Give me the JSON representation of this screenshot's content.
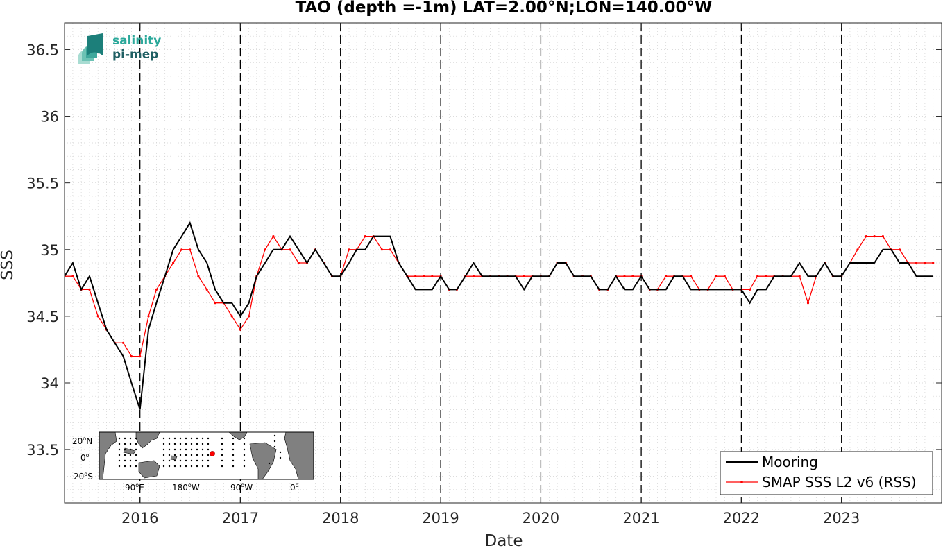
{
  "chart_data": {
    "type": "line",
    "title": "TAO (depth =-1m) LAT=2.00°N;LON=140.00°W",
    "xlabel": "Date",
    "ylabel": "SSS",
    "xlim": [
      "2015-04-01",
      "2024-01-01"
    ],
    "ylim": [
      33.1,
      36.7
    ],
    "x_ticks": [
      "2016",
      "2017",
      "2018",
      "2019",
      "2020",
      "2021",
      "2022",
      "2023"
    ],
    "y_ticks": [
      "33.5",
      "34",
      "34.5",
      "35",
      "35.5",
      "36",
      "36.5"
    ],
    "y_tick_values": [
      33.5,
      34,
      34.5,
      35,
      35.5,
      36,
      36.5
    ],
    "grid": "minor dotted",
    "year_boundaries": [
      "2016-01-01",
      "2017-01-01",
      "2018-01-01",
      "2019-01-01",
      "2020-01-01",
      "2021-01-01",
      "2022-01-01",
      "2023-01-01"
    ],
    "legend_position": "bottom-right",
    "series": [
      {
        "name": "Mooring",
        "color": "#000000",
        "x": [
          "2015-04-01",
          "2015-05-01",
          "2015-06-01",
          "2015-07-01",
          "2015-08-01",
          "2015-09-01",
          "2015-10-01",
          "2015-11-01",
          "2015-12-01",
          "2016-01-01",
          "2016-02-01",
          "2016-03-01",
          "2016-04-01",
          "2016-05-01",
          "2016-06-01",
          "2016-07-01",
          "2016-08-01",
          "2016-09-01",
          "2016-10-01",
          "2016-11-01",
          "2016-12-01",
          "2017-01-01",
          "2017-02-01",
          "2017-03-01",
          "2017-04-01",
          "2017-05-01",
          "2017-06-01",
          "2017-07-01",
          "2017-08-01",
          "2017-09-01",
          "2017-10-01",
          "2017-11-01",
          "2017-12-01",
          "2018-01-01",
          "2018-02-01",
          "2018-03-01",
          "2018-04-01",
          "2018-05-01",
          "2018-06-01",
          "2018-07-01",
          "2018-08-01",
          "2018-09-01",
          "2018-10-01",
          "2018-11-01",
          "2018-12-01",
          "2019-01-01",
          "2019-02-01",
          "2019-03-01",
          "2019-04-01",
          "2019-05-01",
          "2019-06-01",
          "2019-07-01",
          "2019-08-01",
          "2019-09-01",
          "2019-10-01",
          "2019-11-01",
          "2019-12-01",
          "2020-01-01",
          "2020-02-01",
          "2020-03-01",
          "2020-04-01",
          "2020-05-01",
          "2020-06-01",
          "2020-07-01",
          "2020-08-01",
          "2020-09-01",
          "2020-10-01",
          "2020-11-01",
          "2020-12-01",
          "2021-01-01",
          "2021-02-01",
          "2021-03-01",
          "2021-04-01",
          "2021-05-01",
          "2021-06-01",
          "2021-07-01",
          "2021-08-01",
          "2021-09-01",
          "2021-10-01",
          "2021-11-01",
          "2021-12-01",
          "2022-01-01",
          "2022-02-01",
          "2022-03-01",
          "2022-04-01",
          "2022-05-01",
          "2022-06-01",
          "2022-07-01",
          "2022-08-01",
          "2022-09-01",
          "2022-10-01",
          "2022-11-01",
          "2022-12-01",
          "2023-01-01",
          "2023-02-01",
          "2023-03-01",
          "2023-04-01",
          "2023-05-01",
          "2023-06-01",
          "2023-07-01",
          "2023-08-01",
          "2023-09-01",
          "2023-10-01",
          "2023-11-01",
          "2023-12-01"
        ],
        "y": [
          34.8,
          34.9,
          34.7,
          34.8,
          34.6,
          34.4,
          34.3,
          34.2,
          34.0,
          33.8,
          34.4,
          34.6,
          34.8,
          35.0,
          35.1,
          35.2,
          35.0,
          34.9,
          34.7,
          34.6,
          34.6,
          34.5,
          34.6,
          34.8,
          34.9,
          35.0,
          35.0,
          35.1,
          35.0,
          34.9,
          35.0,
          34.9,
          34.8,
          34.8,
          34.9,
          35.0,
          35.0,
          35.1,
          35.1,
          35.1,
          34.9,
          34.8,
          34.7,
          34.7,
          34.7,
          34.8,
          34.7,
          34.7,
          34.8,
          34.9,
          34.8,
          34.8,
          34.8,
          34.8,
          34.8,
          34.7,
          34.8,
          34.8,
          34.8,
          34.9,
          34.9,
          34.8,
          34.8,
          34.8,
          34.7,
          34.7,
          34.8,
          34.7,
          34.7,
          34.8,
          34.7,
          34.7,
          34.7,
          34.8,
          34.8,
          34.7,
          34.7,
          34.7,
          34.7,
          34.7,
          34.7,
          34.7,
          34.6,
          34.7,
          34.7,
          34.8,
          34.8,
          34.8,
          34.9,
          34.8,
          34.8,
          34.9,
          34.8,
          34.8,
          34.9,
          34.9,
          34.9,
          34.9,
          35.0,
          35.0,
          34.9,
          34.9,
          34.8,
          34.8,
          34.8
        ]
      },
      {
        "name": "SMAP SSS L2 v6 (RSS)",
        "color": "#ff0000",
        "x": [
          "2015-04-01",
          "2015-05-01",
          "2015-06-01",
          "2015-07-01",
          "2015-08-01",
          "2015-09-01",
          "2015-10-01",
          "2015-11-01",
          "2015-12-01",
          "2016-01-01",
          "2016-02-01",
          "2016-03-01",
          "2016-04-01",
          "2016-05-01",
          "2016-06-01",
          "2016-07-01",
          "2016-08-01",
          "2016-09-01",
          "2016-10-01",
          "2016-11-01",
          "2016-12-01",
          "2017-01-01",
          "2017-02-01",
          "2017-03-01",
          "2017-04-01",
          "2017-05-01",
          "2017-06-01",
          "2017-07-01",
          "2017-08-01",
          "2017-09-01",
          "2017-10-01",
          "2017-11-01",
          "2017-12-01",
          "2018-01-01",
          "2018-02-01",
          "2018-03-01",
          "2018-04-01",
          "2018-05-01",
          "2018-06-01",
          "2018-07-01",
          "2018-08-01",
          "2018-09-01",
          "2018-10-01",
          "2018-11-01",
          "2018-12-01",
          "2019-01-01",
          "2019-02-01",
          "2019-03-01",
          "2019-04-01",
          "2019-05-01",
          "2019-06-01",
          "2019-07-01",
          "2019-08-01",
          "2019-09-01",
          "2019-10-01",
          "2019-11-01",
          "2019-12-01",
          "2020-01-01",
          "2020-02-01",
          "2020-03-01",
          "2020-04-01",
          "2020-05-01",
          "2020-06-01",
          "2020-07-01",
          "2020-08-01",
          "2020-09-01",
          "2020-10-01",
          "2020-11-01",
          "2020-12-01",
          "2021-01-01",
          "2021-02-01",
          "2021-03-01",
          "2021-04-01",
          "2021-05-01",
          "2021-06-01",
          "2021-07-01",
          "2021-08-01",
          "2021-09-01",
          "2021-10-01",
          "2021-11-01",
          "2021-12-01",
          "2022-01-01",
          "2022-02-01",
          "2022-03-01",
          "2022-04-01",
          "2022-05-01",
          "2022-06-01",
          "2022-07-01",
          "2022-08-01",
          "2022-09-01",
          "2022-10-01",
          "2022-11-01",
          "2022-12-01",
          "2023-01-01",
          "2023-02-01",
          "2023-03-01",
          "2023-04-01",
          "2023-05-01",
          "2023-06-01",
          "2023-07-01",
          "2023-08-01",
          "2023-09-01",
          "2023-10-01",
          "2023-11-01",
          "2023-12-01"
        ],
        "y": [
          34.8,
          34.8,
          34.7,
          34.7,
          34.5,
          34.4,
          34.3,
          34.3,
          34.2,
          34.2,
          34.5,
          34.7,
          34.8,
          34.9,
          35.0,
          35.0,
          34.8,
          34.7,
          34.6,
          34.6,
          34.5,
          34.4,
          34.5,
          34.8,
          35.0,
          35.1,
          35.0,
          35.0,
          34.9,
          34.9,
          35.0,
          34.9,
          34.8,
          34.8,
          35.0,
          35.0,
          35.1,
          35.1,
          35.0,
          35.0,
          34.9,
          34.8,
          34.8,
          34.8,
          34.8,
          34.8,
          34.7,
          34.7,
          34.8,
          34.8,
          34.8,
          34.8,
          34.8,
          34.8,
          34.8,
          34.8,
          34.8,
          34.8,
          34.8,
          34.9,
          34.9,
          34.8,
          34.8,
          34.8,
          34.7,
          34.7,
          34.8,
          34.8,
          34.8,
          34.8,
          34.7,
          34.7,
          34.8,
          34.8,
          34.8,
          34.8,
          34.7,
          34.7,
          34.8,
          34.8,
          34.7,
          34.7,
          34.7,
          34.8,
          34.8,
          34.8,
          34.8,
          34.8,
          34.8,
          34.6,
          34.8,
          34.9,
          34.8,
          34.8,
          34.9,
          35.0,
          35.1,
          35.1,
          35.1,
          35.0,
          35.0,
          34.9,
          34.9,
          34.9,
          34.9
        ]
      }
    ]
  },
  "logo": {
    "line1": "salinity",
    "line2": "pi-mep"
  },
  "inset_map": {
    "lat_labels": [
      {
        "deg": "20",
        "suffix": "N"
      },
      {
        "deg": "0",
        "suffix": ""
      },
      {
        "deg": "20",
        "suffix": "S"
      }
    ],
    "lon_labels": [
      {
        "deg": "90",
        "suffix": "E"
      },
      {
        "deg": "180",
        "suffix": "W"
      },
      {
        "deg": "90",
        "suffix": "W"
      },
      {
        "deg": "0",
        "suffix": ""
      }
    ],
    "marker_color": "#ff0000",
    "land_color": "#808080",
    "ocean_color": "#ffffff"
  }
}
